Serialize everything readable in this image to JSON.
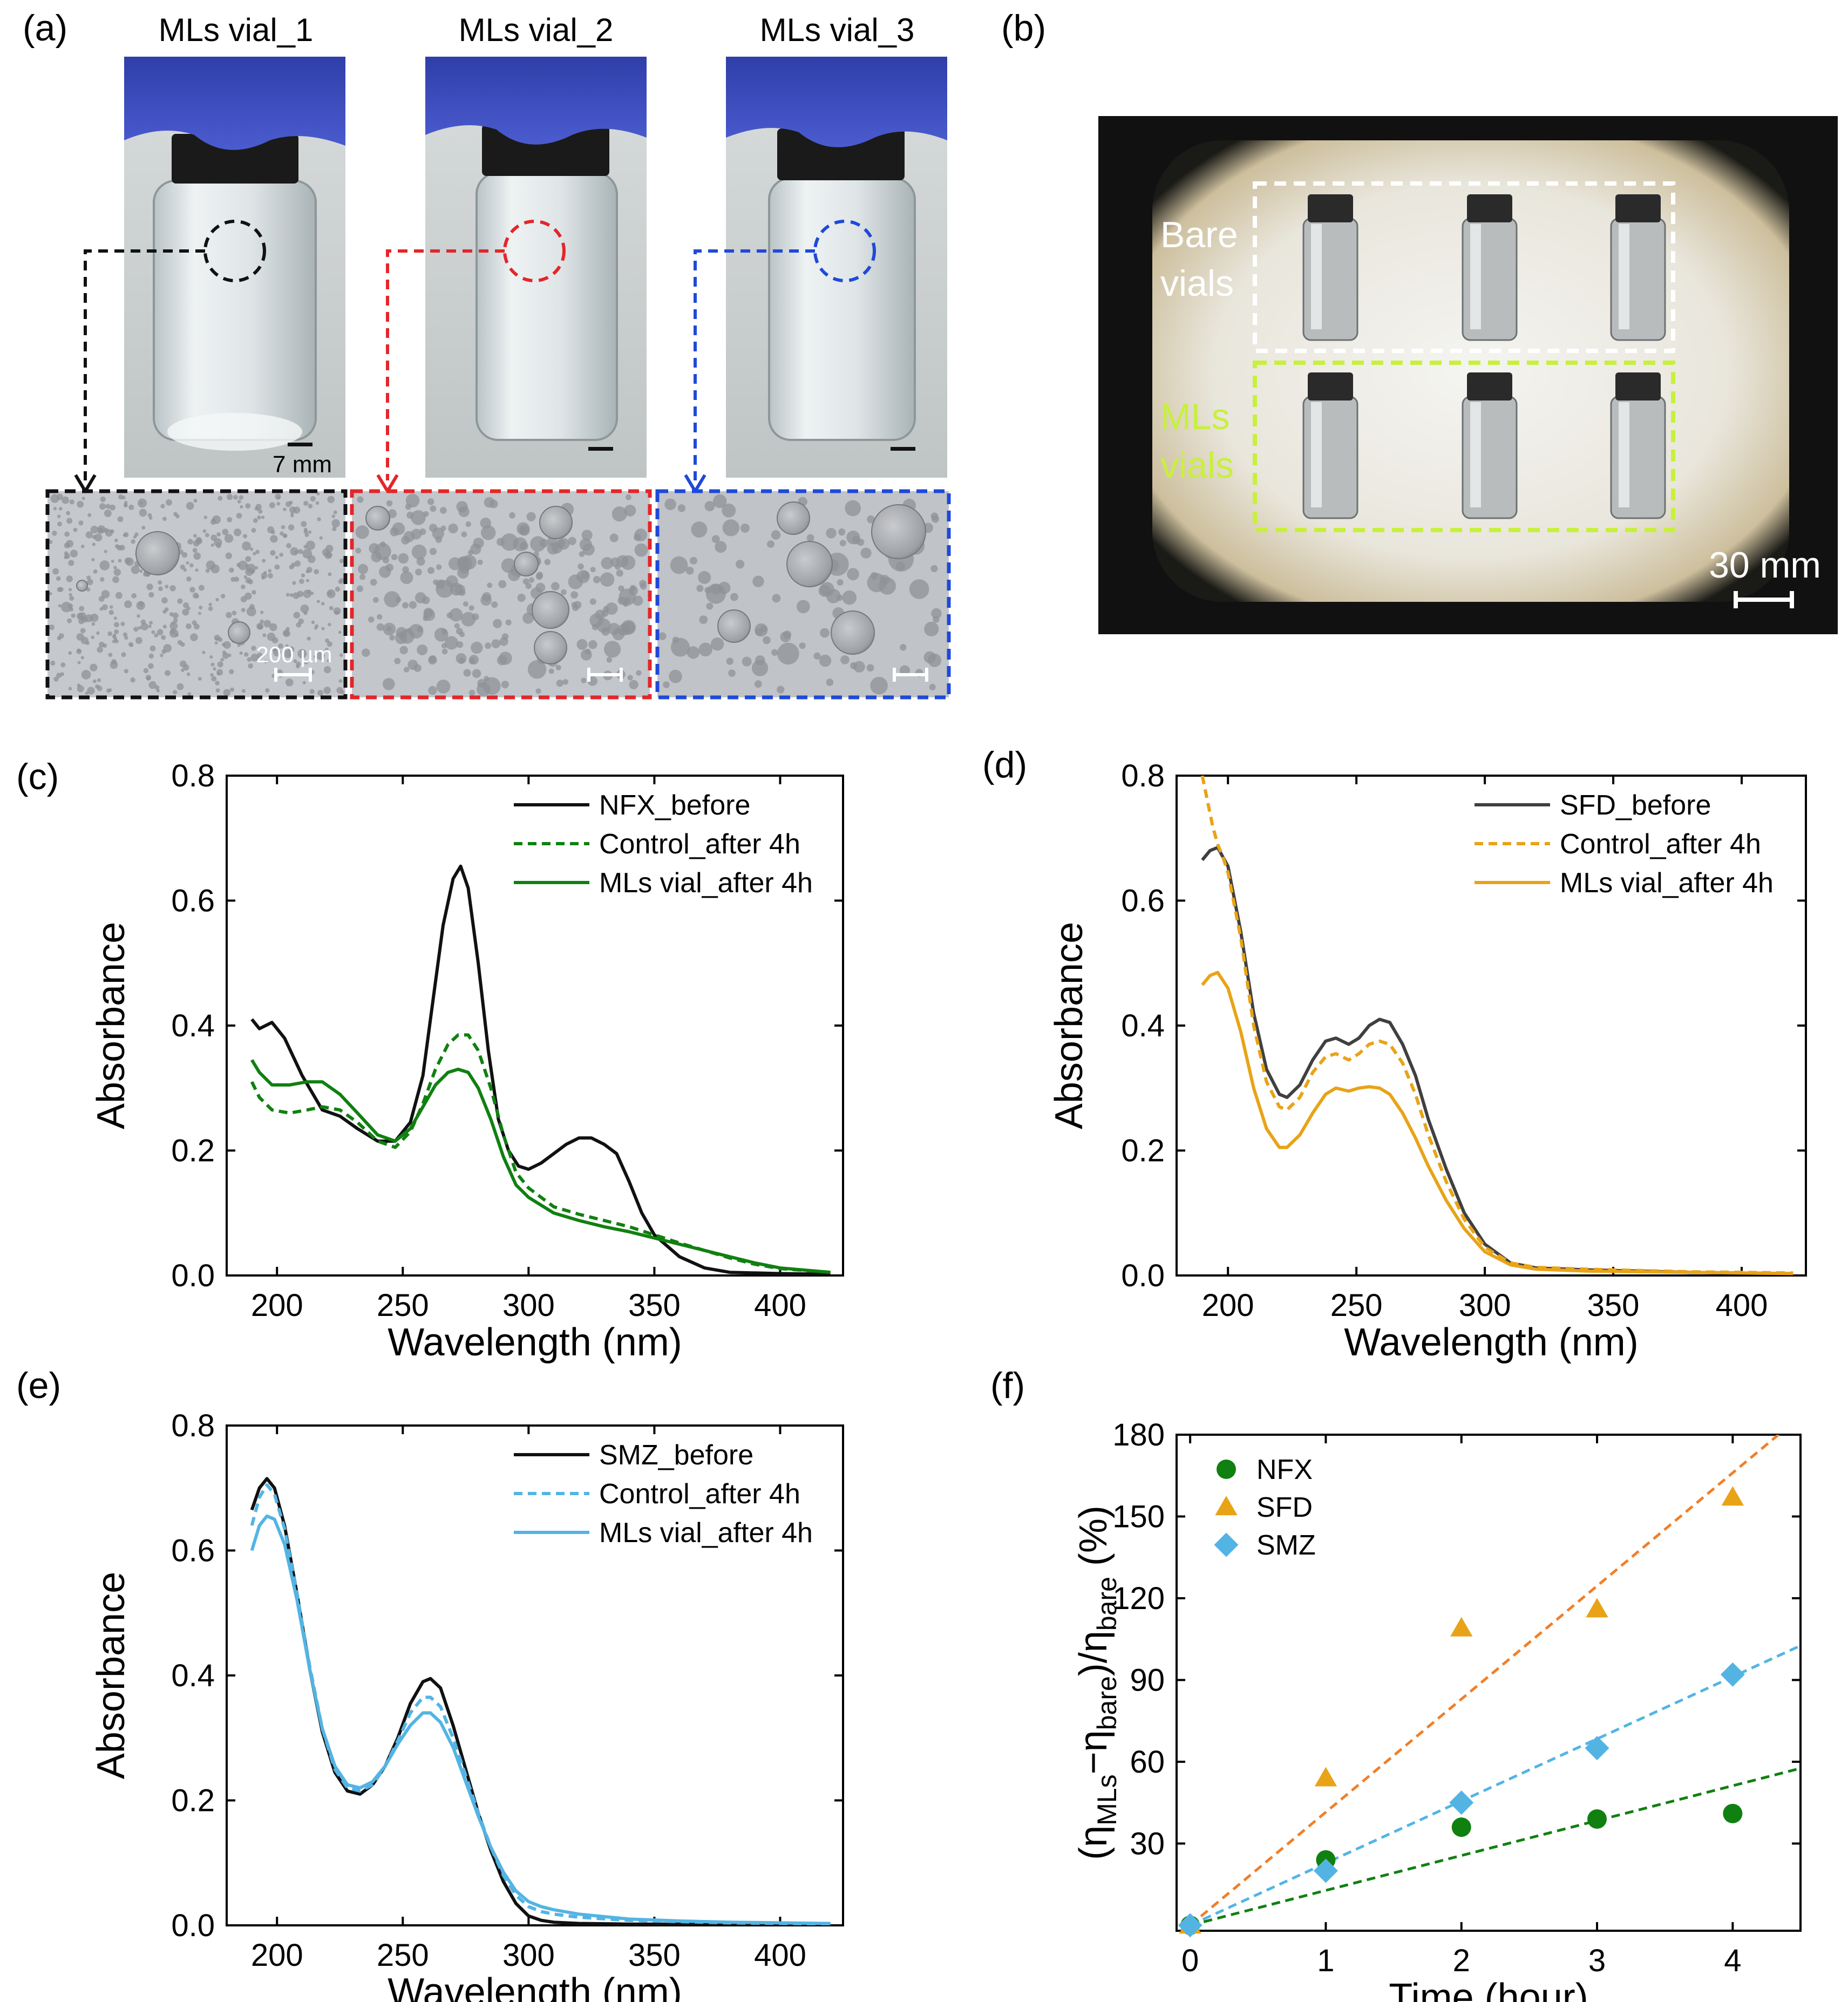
{
  "panel_labels": {
    "a": "(a)",
    "b": "(b)",
    "c": "(c)",
    "d": "(d)",
    "e": "(e)",
    "f": "(f)"
  },
  "panel_a": {
    "vial_titles": [
      "MLs vial_1",
      "MLs vial_2",
      "MLs vial_3"
    ],
    "vial_scale_label": "7 mm",
    "micro_scale_label": "200 µm",
    "frame_colors": [
      "#111111",
      "#e3262a",
      "#1f49d9"
    ]
  },
  "panel_b": {
    "bare_label_line1": "Bare",
    "bare_label_line2": "vials",
    "mls_label_line1": "MLs",
    "mls_label_line2": "vials",
    "scale_label": "30 mm",
    "bare_color": "#ffffff",
    "mls_color": "#c8f03c"
  },
  "colors": {
    "nfx": "#108010",
    "sfd": "#e8a317",
    "smz": "#53b4e4",
    "black": "#111111",
    "sfd_fit": "#f07f2a"
  },
  "chart_data": [
    {
      "id": "c",
      "type": "line",
      "xlabel": "Wavelength (nm)",
      "ylabel": "Absorbance",
      "xlim": [
        180,
        425
      ],
      "ylim": [
        0,
        0.8
      ],
      "xticks": [
        200,
        250,
        300,
        350,
        400
      ],
      "yticks": [
        0.0,
        0.2,
        0.4,
        0.6,
        0.8
      ],
      "legend": "top-right",
      "series": [
        {
          "name": "NFX_before",
          "color": "#111111",
          "dash": false,
          "x": [
            190,
            193,
            198,
            203,
            210,
            218,
            225,
            232,
            240,
            247,
            253,
            258,
            262,
            266,
            270,
            273,
            276,
            280,
            284,
            288,
            292,
            296,
            300,
            305,
            310,
            315,
            320,
            325,
            330,
            335,
            340,
            345,
            350,
            360,
            370,
            380,
            400,
            420
          ],
          "y": [
            0.41,
            0.395,
            0.405,
            0.38,
            0.32,
            0.265,
            0.255,
            0.235,
            0.215,
            0.215,
            0.245,
            0.32,
            0.44,
            0.56,
            0.635,
            0.655,
            0.62,
            0.5,
            0.36,
            0.25,
            0.2,
            0.175,
            0.17,
            0.18,
            0.195,
            0.21,
            0.22,
            0.22,
            0.21,
            0.195,
            0.15,
            0.1,
            0.065,
            0.03,
            0.012,
            0.005,
            0.003,
            0.002
          ]
        },
        {
          "name": "Control_after 4h",
          "color": "#108010",
          "dash": true,
          "x": [
            190,
            193,
            198,
            205,
            212,
            218,
            225,
            232,
            240,
            247,
            253,
            258,
            263,
            268,
            272,
            276,
            280,
            285,
            290,
            295,
            300,
            310,
            320,
            330,
            340,
            350,
            360,
            370,
            380,
            390,
            400,
            420
          ],
          "y": [
            0.31,
            0.285,
            0.265,
            0.26,
            0.265,
            0.27,
            0.265,
            0.245,
            0.215,
            0.205,
            0.23,
            0.275,
            0.33,
            0.37,
            0.385,
            0.385,
            0.36,
            0.3,
            0.225,
            0.165,
            0.14,
            0.11,
            0.098,
            0.088,
            0.078,
            0.065,
            0.052,
            0.04,
            0.028,
            0.018,
            0.011,
            0.005
          ]
        },
        {
          "name": "MLs vial_after 4h",
          "color": "#108010",
          "dash": false,
          "x": [
            190,
            193,
            198,
            205,
            212,
            218,
            225,
            232,
            240,
            247,
            253,
            258,
            263,
            268,
            272,
            276,
            280,
            285,
            290,
            295,
            300,
            310,
            320,
            330,
            340,
            350,
            360,
            370,
            380,
            390,
            400,
            420
          ],
          "y": [
            0.345,
            0.325,
            0.305,
            0.305,
            0.31,
            0.31,
            0.29,
            0.26,
            0.225,
            0.215,
            0.235,
            0.27,
            0.305,
            0.325,
            0.33,
            0.325,
            0.3,
            0.25,
            0.19,
            0.145,
            0.125,
            0.1,
            0.088,
            0.078,
            0.07,
            0.06,
            0.05,
            0.04,
            0.03,
            0.02,
            0.012,
            0.005
          ]
        }
      ]
    },
    {
      "id": "d",
      "type": "line",
      "xlabel": "Wavelength (nm)",
      "ylabel": "Absorbance",
      "xlim": [
        180,
        425
      ],
      "ylim": [
        0,
        0.8
      ],
      "xticks": [
        200,
        250,
        300,
        350,
        400
      ],
      "yticks": [
        0.0,
        0.2,
        0.4,
        0.6,
        0.8
      ],
      "legend": "top-right",
      "series": [
        {
          "name": "SFD_before",
          "color": "#404040",
          "dash": false,
          "x": [
            190,
            193,
            196,
            200,
            205,
            210,
            215,
            220,
            223,
            228,
            233,
            238,
            242,
            247,
            251,
            255,
            259,
            263,
            268,
            273,
            278,
            285,
            292,
            300,
            310,
            320,
            340,
            360,
            380,
            400,
            420
          ],
          "y": [
            0.665,
            0.68,
            0.685,
            0.655,
            0.55,
            0.42,
            0.33,
            0.29,
            0.285,
            0.305,
            0.345,
            0.375,
            0.38,
            0.37,
            0.38,
            0.4,
            0.41,
            0.405,
            0.37,
            0.32,
            0.25,
            0.17,
            0.1,
            0.05,
            0.02,
            0.012,
            0.009,
            0.007,
            0.005,
            0.004,
            0.003
          ]
        },
        {
          "name": "Control_after 4h",
          "color": "#e8a317",
          "dash": true,
          "x": [
            190,
            192,
            194,
            196,
            198,
            200,
            205,
            210,
            215,
            220,
            223,
            228,
            233,
            238,
            242,
            247,
            251,
            255,
            259,
            263,
            268,
            273,
            278,
            285,
            292,
            300,
            310,
            320,
            340,
            360,
            380,
            400,
            420
          ],
          "y": [
            0.8,
            0.76,
            0.72,
            0.69,
            0.67,
            0.645,
            0.54,
            0.4,
            0.31,
            0.27,
            0.265,
            0.285,
            0.325,
            0.35,
            0.355,
            0.345,
            0.355,
            0.37,
            0.375,
            0.37,
            0.34,
            0.29,
            0.225,
            0.15,
            0.09,
            0.045,
            0.02,
            0.013,
            0.01,
            0.008,
            0.006,
            0.005,
            0.004
          ]
        },
        {
          "name": "MLs vial_after 4h",
          "color": "#e8a317",
          "dash": false,
          "x": [
            190,
            193,
            196,
            200,
            205,
            210,
            215,
            220,
            223,
            228,
            233,
            238,
            242,
            247,
            251,
            255,
            259,
            263,
            268,
            273,
            278,
            285,
            292,
            300,
            310,
            320,
            340,
            360,
            380,
            400,
            420
          ],
          "y": [
            0.465,
            0.48,
            0.485,
            0.46,
            0.39,
            0.3,
            0.235,
            0.205,
            0.205,
            0.225,
            0.26,
            0.29,
            0.3,
            0.295,
            0.3,
            0.302,
            0.3,
            0.29,
            0.26,
            0.22,
            0.175,
            0.12,
            0.075,
            0.038,
            0.017,
            0.01,
            0.007,
            0.006,
            0.005,
            0.004,
            0.003
          ]
        }
      ]
    },
    {
      "id": "e",
      "type": "line",
      "xlabel": "Wavelength (nm)",
      "ylabel": "Absorbance",
      "xlim": [
        180,
        425
      ],
      "ylim": [
        0,
        0.8
      ],
      "xticks": [
        200,
        250,
        300,
        350,
        400
      ],
      "yticks": [
        0.0,
        0.2,
        0.4,
        0.6,
        0.8
      ],
      "legend": "top-right",
      "series": [
        {
          "name": "SMZ_before",
          "color": "#111111",
          "dash": false,
          "x": [
            190,
            193,
            196,
            199,
            203,
            208,
            213,
            218,
            223,
            228,
            233,
            238,
            243,
            248,
            253,
            258,
            261,
            265,
            270,
            275,
            280,
            285,
            290,
            295,
            300,
            305,
            310,
            320,
            340,
            360,
            380,
            400,
            420
          ],
          "y": [
            0.665,
            0.7,
            0.715,
            0.7,
            0.64,
            0.53,
            0.41,
            0.31,
            0.245,
            0.215,
            0.21,
            0.225,
            0.255,
            0.3,
            0.355,
            0.39,
            0.395,
            0.38,
            0.32,
            0.25,
            0.18,
            0.12,
            0.07,
            0.035,
            0.015,
            0.008,
            0.005,
            0.003,
            0.002,
            0.002,
            0.002,
            0.001,
            0.001
          ]
        },
        {
          "name": "Control_after 4h",
          "color": "#53b4e4",
          "dash": true,
          "x": [
            190,
            193,
            196,
            199,
            203,
            208,
            213,
            218,
            223,
            228,
            233,
            238,
            243,
            248,
            253,
            258,
            261,
            265,
            270,
            275,
            280,
            285,
            290,
            295,
            300,
            305,
            310,
            320,
            340,
            360,
            380,
            400,
            420
          ],
          "y": [
            0.64,
            0.685,
            0.705,
            0.69,
            0.635,
            0.53,
            0.415,
            0.315,
            0.25,
            0.22,
            0.215,
            0.225,
            0.255,
            0.295,
            0.34,
            0.365,
            0.365,
            0.35,
            0.3,
            0.24,
            0.18,
            0.125,
            0.08,
            0.048,
            0.03,
            0.022,
            0.018,
            0.013,
            0.008,
            0.006,
            0.004,
            0.003,
            0.002
          ]
        },
        {
          "name": "MLs vial_after 4h",
          "color": "#53b4e4",
          "dash": false,
          "x": [
            190,
            193,
            196,
            199,
            203,
            208,
            213,
            218,
            223,
            228,
            233,
            238,
            243,
            248,
            253,
            258,
            261,
            265,
            270,
            275,
            280,
            285,
            290,
            295,
            300,
            305,
            310,
            320,
            340,
            360,
            380,
            400,
            420
          ],
          "y": [
            0.6,
            0.64,
            0.655,
            0.65,
            0.61,
            0.52,
            0.41,
            0.315,
            0.255,
            0.225,
            0.22,
            0.23,
            0.255,
            0.29,
            0.32,
            0.34,
            0.34,
            0.325,
            0.285,
            0.23,
            0.175,
            0.125,
            0.085,
            0.055,
            0.038,
            0.03,
            0.025,
            0.018,
            0.01,
            0.007,
            0.005,
            0.004,
            0.003
          ]
        }
      ]
    },
    {
      "id": "f",
      "type": "scatter",
      "xlabel": "Time (hour)",
      "ylabel": "(η_MLs − η_bare)/η_bare (%)",
      "ylabel_parts": {
        "open": "(η",
        "sub1": "MLs",
        "mid": "−η",
        "sub2": "bare",
        "close": ")/η",
        "sub3": "bare",
        "end": " (%)"
      },
      "xlim": [
        -0.1,
        4.5
      ],
      "ylim": [
        -2,
        180
      ],
      "xticks": [
        0,
        1,
        2,
        3,
        4
      ],
      "yticks": [
        30,
        60,
        90,
        120,
        150,
        180
      ],
      "legend": "top-left",
      "series": [
        {
          "name": "NFX",
          "color": "#108010",
          "marker": "circle",
          "x": [
            0,
            1,
            2,
            3,
            4
          ],
          "y": [
            0,
            24,
            36,
            39,
            41
          ],
          "fit_slope": 12.8
        },
        {
          "name": "SFD",
          "color": "#e8a317",
          "marker": "triangle",
          "x": [
            0,
            1,
            2,
            3,
            4
          ],
          "y": [
            0,
            54,
            109,
            116,
            157
          ],
          "fit_slope": 41.5,
          "fit_color": "#f07f2a"
        },
        {
          "name": "SMZ",
          "color": "#53b4e4",
          "marker": "diamond",
          "x": [
            0,
            1,
            2,
            3,
            4
          ],
          "y": [
            0,
            20,
            45,
            65,
            92
          ],
          "fit_slope": 22.8
        }
      ]
    }
  ]
}
